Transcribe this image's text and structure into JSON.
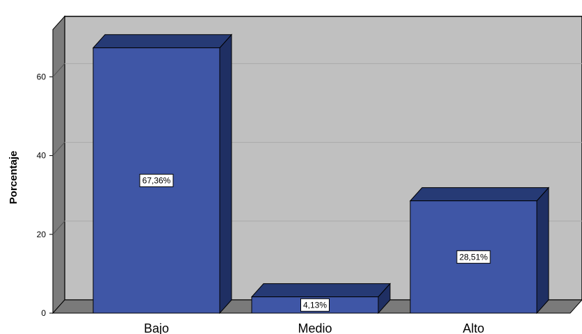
{
  "chart_data": {
    "type": "bar",
    "categories": [
      "Bajo",
      "Medio",
      "Alto"
    ],
    "values": [
      67.36,
      4.13,
      28.51
    ],
    "data_labels": [
      "67,36%",
      "4,13%",
      "28,51%"
    ],
    "ylabel": "Porcentaje",
    "xlabel": "",
    "yticks": [
      0,
      20,
      40,
      60
    ],
    "ylim": [
      0,
      72
    ],
    "grid": true,
    "style": "3d",
    "colors": {
      "bar_front": "#3f56a6",
      "bar_top": "#263a75",
      "bar_side": "#1f2f63",
      "wall": "#c0c0c0",
      "left_wall": "#7c7c7c",
      "floor": "#7a7a7a",
      "gridline": "#a9a9a9"
    }
  }
}
